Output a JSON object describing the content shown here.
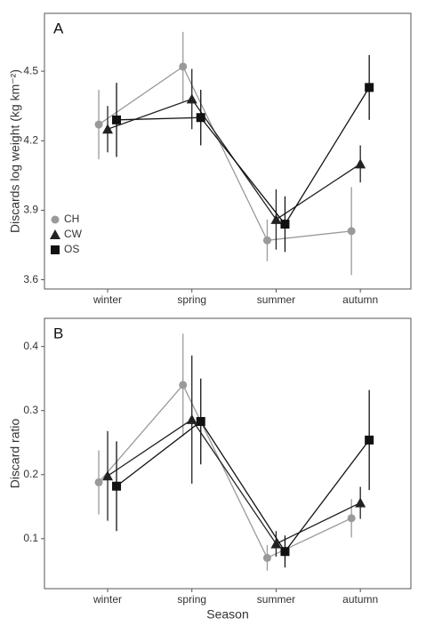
{
  "chart_data": [
    {
      "type": "line",
      "panel_label": "A",
      "ylabel": "Discards log weight (kg km⁻²)",
      "categories": [
        "winter",
        "spring",
        "summer",
        "autumn"
      ],
      "series": [
        {
          "name": "CH",
          "color": "#9a9a9a",
          "marker": "circle",
          "values": [
            4.27,
            4.52,
            3.77,
            3.81
          ],
          "errors": [
            0.15,
            0.15,
            0.09,
            0.19
          ]
        },
        {
          "name": "CW",
          "color": "#222222",
          "marker": "triangle",
          "values": [
            4.25,
            4.38,
            3.86,
            4.1
          ],
          "errors": [
            0.1,
            0.13,
            0.13,
            0.08
          ]
        },
        {
          "name": "OS",
          "color": "#111111",
          "marker": "square",
          "values": [
            4.29,
            4.3,
            3.84,
            4.43
          ],
          "errors": [
            0.16,
            0.12,
            0.12,
            0.14
          ]
        }
      ],
      "ylim": [
        3.56,
        4.75
      ],
      "yticks": [
        3.6,
        3.9,
        4.2,
        4.5
      ],
      "legend": "bottom-left"
    },
    {
      "type": "line",
      "panel_label": "B",
      "ylabel": "Discard ratio",
      "xlabel": "Season",
      "categories": [
        "winter",
        "spring",
        "summer",
        "autumn"
      ],
      "series": [
        {
          "name": "CH",
          "color": "#9a9a9a",
          "marker": "circle",
          "values": [
            0.188,
            0.34,
            0.07,
            0.132
          ],
          "errors": [
            0.05,
            0.08,
            0.02,
            0.03
          ]
        },
        {
          "name": "CW",
          "color": "#222222",
          "marker": "triangle",
          "values": [
            0.198,
            0.286,
            0.092,
            0.156
          ],
          "errors": [
            0.07,
            0.1,
            0.02,
            0.025
          ]
        },
        {
          "name": "OS",
          "color": "#111111",
          "marker": "square",
          "values": [
            0.182,
            0.283,
            0.08,
            0.254
          ],
          "errors": [
            0.07,
            0.067,
            0.025,
            0.078
          ]
        }
      ],
      "ylim": [
        0.022,
        0.444
      ],
      "yticks": [
        0.1,
        0.2,
        0.3,
        0.4
      ]
    }
  ]
}
